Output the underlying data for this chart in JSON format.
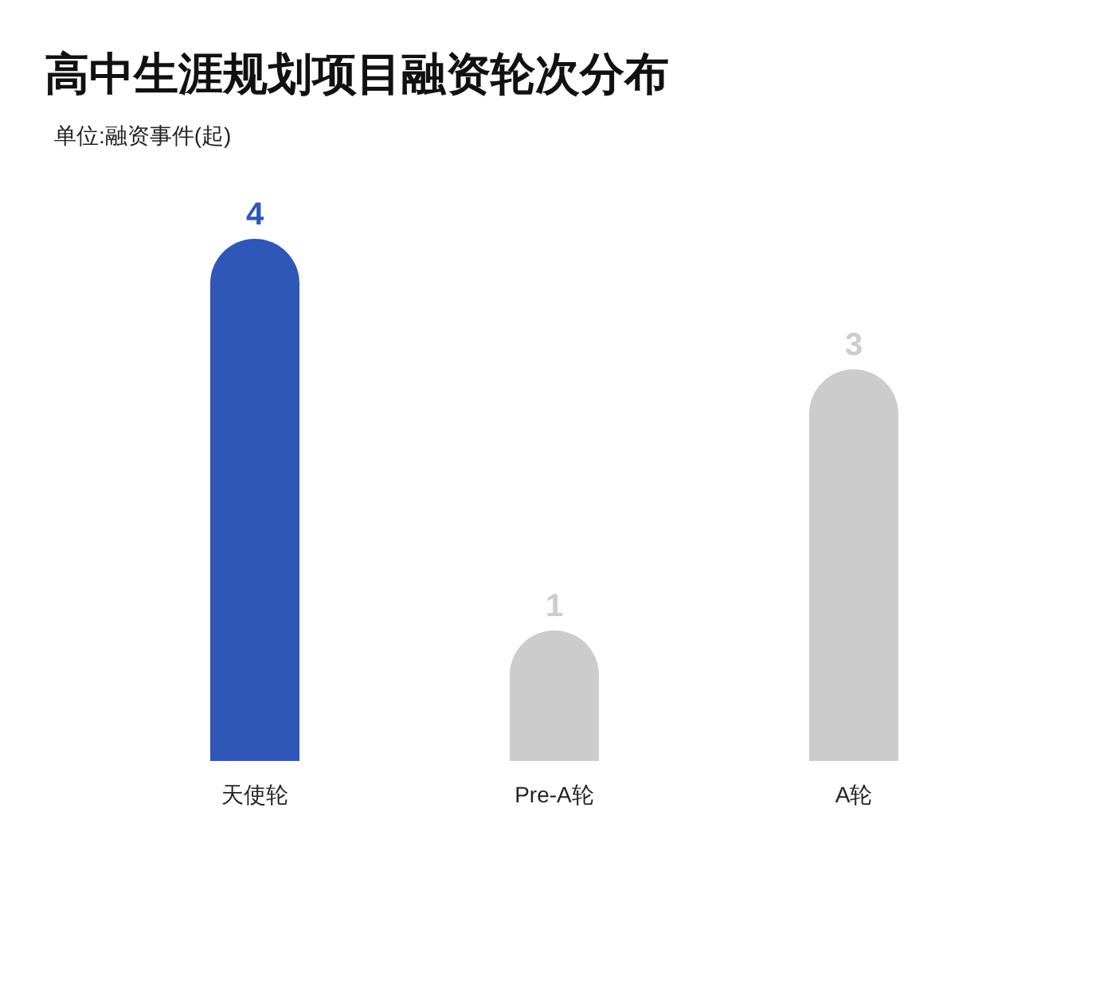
{
  "chart_data": {
    "type": "bar",
    "title": "高中生涯规划项目融资轮次分布",
    "subtitle": "单位:融资事件(起)",
    "categories": [
      "天使轮",
      "Pre-A轮",
      "A轮"
    ],
    "values": [
      4,
      1,
      3
    ],
    "colors": [
      "#2f57b8",
      "#cccccc",
      "#cccccc"
    ],
    "data_labels": true
  }
}
